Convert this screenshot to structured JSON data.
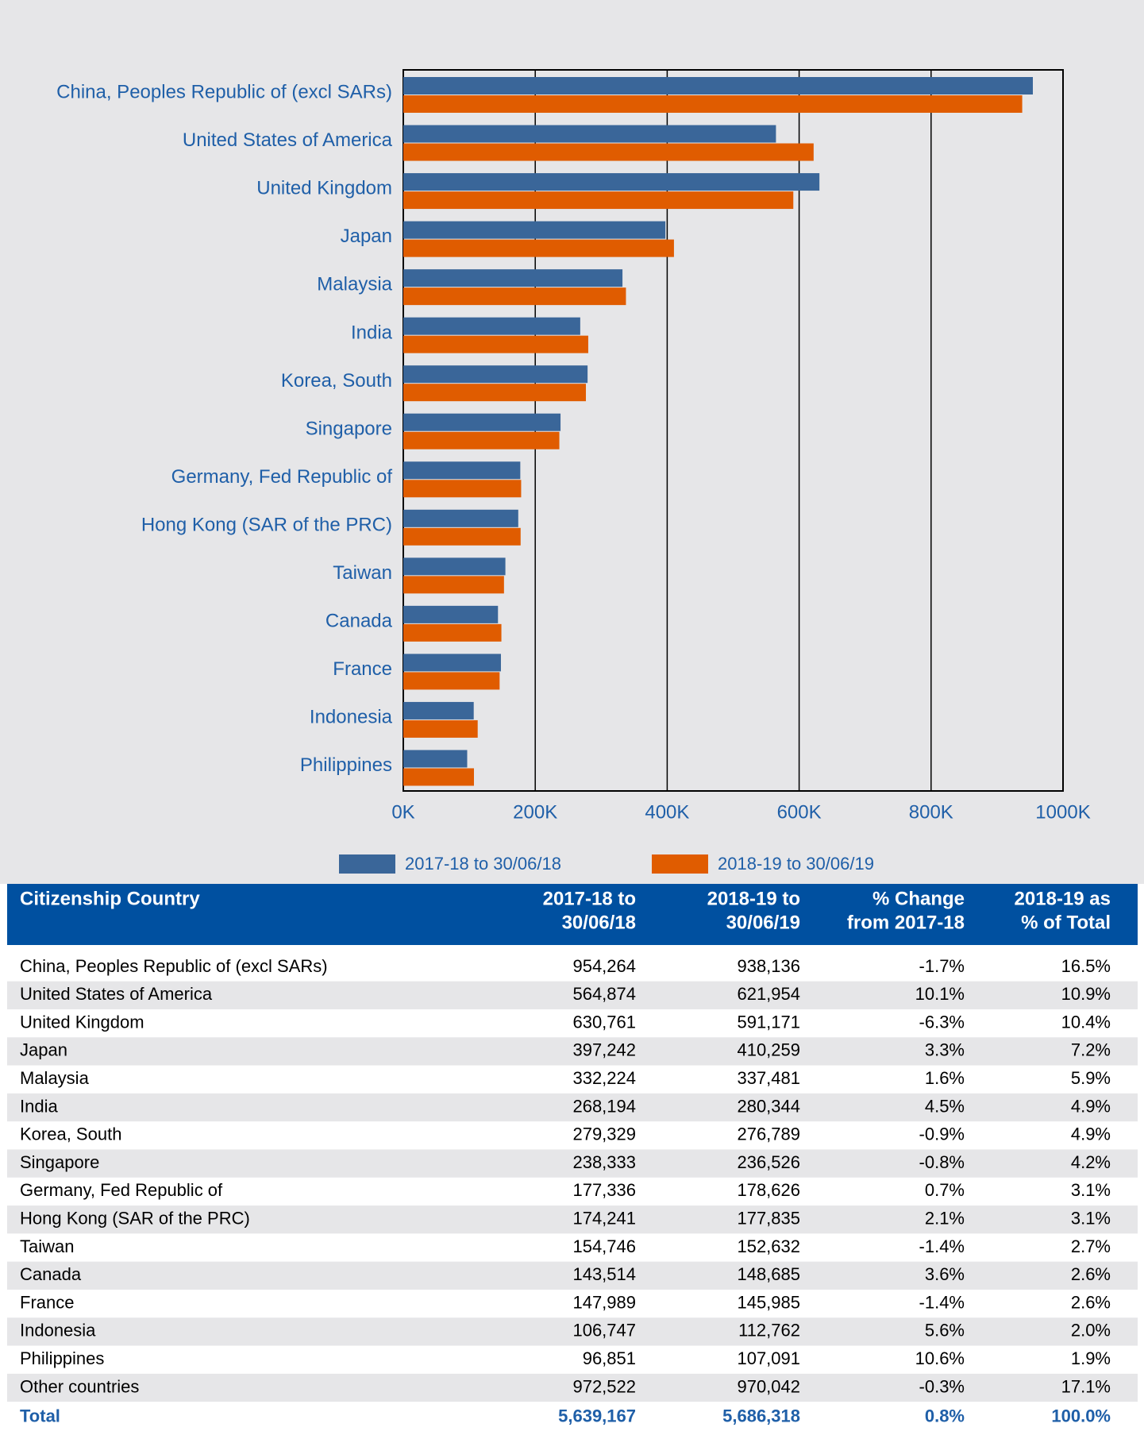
{
  "chart_data": {
    "type": "barh",
    "categories": [
      "China, Peoples Republic of (excl SARs)",
      "United States of America",
      "United Kingdom",
      "Japan",
      "Malaysia",
      "India",
      "Korea, South",
      "Singapore",
      "Germany, Fed Republic of",
      "Hong Kong (SAR of the PRC)",
      "Taiwan",
      "Canada",
      "France",
      "Indonesia",
      "Philippines"
    ],
    "series": [
      {
        "name": "2017-18 to 30/06/18",
        "color": "#3a6699",
        "values": [
          954264,
          564874,
          630761,
          397242,
          332224,
          268194,
          279329,
          238333,
          177336,
          174241,
          154746,
          143514,
          147989,
          106747,
          96851
        ]
      },
      {
        "name": "2018-19 to 30/06/19",
        "color": "#e05c00",
        "values": [
          938136,
          621954,
          591171,
          410259,
          337481,
          280344,
          276789,
          236526,
          178626,
          177835,
          152632,
          148685,
          145985,
          112762,
          107091
        ]
      }
    ],
    "xlim": [
      0,
      1000000
    ],
    "xticks": [
      {
        "value": 0,
        "label": "0K"
      },
      {
        "value": 200000,
        "label": "200K"
      },
      {
        "value": 400000,
        "label": "400K"
      },
      {
        "value": 600000,
        "label": "600K"
      },
      {
        "value": 800000,
        "label": "800K"
      },
      {
        "value": 1000000,
        "label": "1000K"
      }
    ],
    "grid": true,
    "legend": "bottom"
  },
  "table": {
    "columns": [
      [
        "Citizenship Country"
      ],
      [
        "2017-18 to",
        "30/06/18"
      ],
      [
        "2018-19 to",
        "30/06/19"
      ],
      [
        "% Change",
        "from 2017-18"
      ],
      [
        "2018-19 as",
        "% of Total"
      ]
    ],
    "rows": [
      [
        "China, Peoples Republic of (excl SARs)",
        "954,264",
        "938,136",
        "-1.7%",
        "16.5%"
      ],
      [
        "United States of America",
        "564,874",
        "621,954",
        "10.1%",
        "10.9%"
      ],
      [
        "United Kingdom",
        "630,761",
        "591,171",
        "-6.3%",
        "10.4%"
      ],
      [
        "Japan",
        "397,242",
        "410,259",
        "3.3%",
        "7.2%"
      ],
      [
        "Malaysia",
        "332,224",
        "337,481",
        "1.6%",
        "5.9%"
      ],
      [
        "India",
        "268,194",
        "280,344",
        "4.5%",
        "4.9%"
      ],
      [
        "Korea, South",
        "279,329",
        "276,789",
        "-0.9%",
        "4.9%"
      ],
      [
        "Singapore",
        "238,333",
        "236,526",
        "-0.8%",
        "4.2%"
      ],
      [
        "Germany, Fed Republic of",
        "177,336",
        "178,626",
        "0.7%",
        "3.1%"
      ],
      [
        "Hong Kong (SAR of the PRC)",
        "174,241",
        "177,835",
        "2.1%",
        "3.1%"
      ],
      [
        "Taiwan",
        "154,746",
        "152,632",
        "-1.4%",
        "2.7%"
      ],
      [
        "Canada",
        "143,514",
        "148,685",
        "3.6%",
        "2.6%"
      ],
      [
        "France",
        "147,989",
        "145,985",
        "-1.4%",
        "2.6%"
      ],
      [
        "Indonesia",
        "106,747",
        "112,762",
        "5.6%",
        "2.0%"
      ],
      [
        "Philippines",
        "96,851",
        "107,091",
        "10.6%",
        "1.9%"
      ],
      [
        "Other countries",
        "972,522",
        "970,042",
        "-0.3%",
        "17.1%"
      ]
    ],
    "total": [
      "Total",
      "5,639,167",
      "5,686,318",
      "0.8%",
      "100.0%"
    ]
  }
}
